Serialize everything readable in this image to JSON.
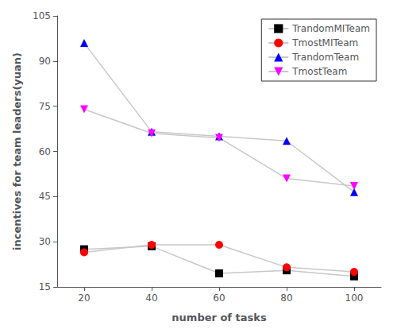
{
  "chart_data": {
    "type": "line",
    "xlabel": "number of tasks",
    "ylabel": "incentives for team leaders(yuan)",
    "x": [
      20,
      40,
      60,
      80,
      100
    ],
    "series": [
      {
        "name": "TrandomMITeam",
        "color": "#000000",
        "marker": "square",
        "values": [
          27.5,
          28.5,
          19.5,
          20.5,
          18.5
        ]
      },
      {
        "name": "TmostMITeam",
        "color": "#ff0000",
        "marker": "circle",
        "values": [
          26.5,
          29.0,
          29.0,
          21.5,
          20.0
        ]
      },
      {
        "name": "TrandomTeam",
        "color": "#0000ff",
        "marker": "triangle_up",
        "values": [
          96.0,
          66.5,
          65.0,
          63.5,
          46.5
        ]
      },
      {
        "name": "TmostTeam",
        "color": "#ff00ff",
        "marker": "triangle_down",
        "values": [
          74.0,
          66.0,
          64.5,
          51.0,
          48.5
        ]
      }
    ],
    "xlim": [
      12,
      108
    ],
    "xticks": [
      20,
      40,
      60,
      80,
      100
    ],
    "ylim": [
      15,
      105
    ],
    "yticks": [
      15,
      30,
      45,
      60,
      75,
      90,
      105
    ],
    "grid": false,
    "legend": "upper right"
  }
}
